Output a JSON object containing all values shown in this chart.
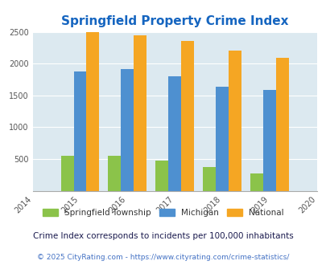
{
  "title": "Springfield Property Crime Index",
  "years": [
    2015,
    2016,
    2017,
    2018,
    2019
  ],
  "springfield": [
    550,
    550,
    480,
    370,
    270
  ],
  "michigan": [
    1870,
    1920,
    1800,
    1640,
    1580
  ],
  "national": [
    2490,
    2450,
    2360,
    2200,
    2090
  ],
  "xlim": [
    2014,
    2020
  ],
  "ylim": [
    0,
    2500
  ],
  "yticks": [
    0,
    500,
    1000,
    1500,
    2000,
    2500
  ],
  "xticks": [
    2014,
    2015,
    2016,
    2017,
    2018,
    2019,
    2020
  ],
  "color_springfield": "#8bc34a",
  "color_michigan": "#4e90d0",
  "color_national": "#f5a623",
  "title_color": "#1565c0",
  "bg_color": "#dce9f0",
  "plot_bg": "#ffffff",
  "bar_width": 0.27,
  "legend_labels": [
    "Springfield Township",
    "Michigan",
    "National"
  ],
  "note_text": "Crime Index corresponds to incidents per 100,000 inhabitants",
  "footer_text": "© 2025 CityRating.com - https://www.cityrating.com/crime-statistics/",
  "note_color": "#1a1a4e",
  "footer_color": "#4472c4"
}
